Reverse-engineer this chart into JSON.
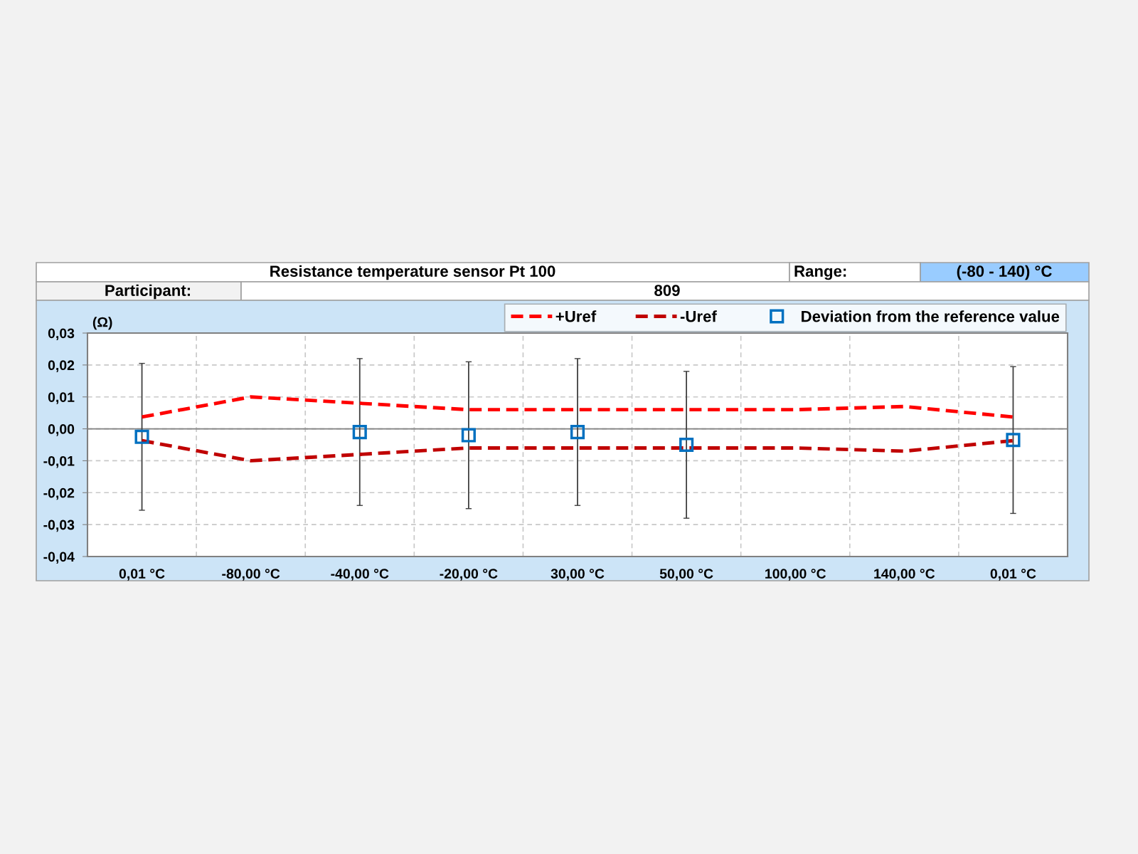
{
  "chart_data": {
    "type": "line",
    "title": "Resistance temperature sensor Pt 100",
    "ylabel": "(Ω)",
    "annotations": [
      "Range:",
      "(-80 - 140) °C",
      "Participant:",
      "809"
    ],
    "categories": [
      "0,01 °C",
      "-80,00 °C",
      "-40,00 °C",
      "-20,00 °C",
      "30,00 °C",
      "50,00 °C",
      "100,00 °C",
      "140,00 °C",
      "0,01 °C"
    ],
    "series": [
      {
        "name": "+Uref",
        "color": "#ff0000",
        "line_style": "dashed",
        "marker": "none",
        "values": [
          0.0037,
          0.01,
          0.008,
          0.006,
          0.006,
          0.006,
          0.006,
          0.007,
          0.0037
        ]
      },
      {
        "name": "-Uref",
        "color": "#c00000",
        "line_style": "dashed",
        "marker": "none",
        "values": [
          -0.0037,
          -0.01,
          -0.008,
          -0.006,
          -0.006,
          -0.006,
          -0.006,
          -0.007,
          -0.0037
        ]
      },
      {
        "name": "Deviation from the reference value",
        "type": "scatter",
        "color": "#0070c0",
        "marker": "square",
        "values": [
          -0.0025,
          null,
          -0.001,
          -0.002,
          -0.001,
          -0.005,
          null,
          null,
          -0.0035
        ],
        "errors": [
          0.023,
          null,
          0.023,
          0.023,
          0.023,
          0.023,
          null,
          null,
          0.023
        ]
      }
    ],
    "ylim": [
      -0.04,
      0.03
    ],
    "yticks": [
      {
        "value": -0.04,
        "label": "-0,04"
      },
      {
        "value": -0.03,
        "label": "-0,03"
      },
      {
        "value": -0.02,
        "label": "-0,02"
      },
      {
        "value": -0.01,
        "label": "-0,01"
      },
      {
        "value": 0.0,
        "label": "0,00"
      },
      {
        "value": 0.01,
        "label": "0,01"
      },
      {
        "value": 0.02,
        "label": "0,02"
      },
      {
        "value": 0.03,
        "label": "0,03"
      }
    ],
    "ref_lines": [
      {
        "axis": "y",
        "value": 0.0,
        "color": "#808080",
        "line_style": "solid"
      }
    ],
    "grid": true,
    "legend": "top right"
  }
}
